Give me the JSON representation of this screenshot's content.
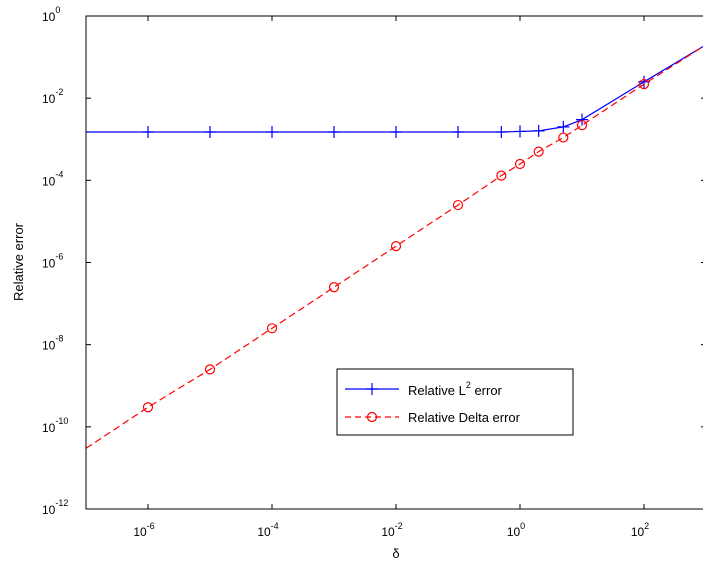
{
  "chart_data": {
    "type": "line",
    "xlabel": "δ",
    "ylabel": "Relative error",
    "x_scale": "log",
    "y_scale": "log",
    "xlim": [
      1e-07,
      1000
    ],
    "ylim": [
      1e-12,
      1
    ],
    "x_ticks": [
      {
        "base": "10",
        "exp": "-6",
        "value": 1e-06
      },
      {
        "base": "10",
        "exp": "-4",
        "value": 0.0001
      },
      {
        "base": "10",
        "exp": "-2",
        "value": 0.01
      },
      {
        "base": "10",
        "exp": "0",
        "value": 1
      },
      {
        "base": "10",
        "exp": "2",
        "value": 100
      }
    ],
    "y_ticks": [
      {
        "base": "10",
        "exp": "0",
        "value": 1
      },
      {
        "base": "10",
        "exp": "-2",
        "value": 0.01
      },
      {
        "base": "10",
        "exp": "-4",
        "value": 0.0001
      },
      {
        "base": "10",
        "exp": "-6",
        "value": 1e-06
      },
      {
        "base": "10",
        "exp": "-8",
        "value": 1e-08
      },
      {
        "base": "10",
        "exp": "-10",
        "value": 1e-10
      },
      {
        "base": "10",
        "exp": "-12",
        "value": 1e-12
      }
    ],
    "grid": false,
    "legend_position": "lower-right",
    "series": [
      {
        "name_prefix": "Relative L",
        "name_sup": "2",
        "name_suffix": " error",
        "color": "#0000ff",
        "line_style": "solid",
        "marker": "plus",
        "x": [
          1e-07,
          1e-06,
          1e-05,
          0.0001,
          0.001,
          0.01,
          0.1,
          0.5,
          1,
          2,
          5,
          10,
          100,
          1000
        ],
        "y": [
          0.0015,
          0.0015,
          0.0015,
          0.0015,
          0.0015,
          0.0015,
          0.0015,
          0.0015,
          0.00155,
          0.0016,
          0.002,
          0.003,
          0.025,
          0.2
        ],
        "marker_x": [
          1e-06,
          1e-05,
          0.0001,
          0.001,
          0.01,
          0.1,
          0.5,
          1,
          2,
          5,
          10,
          100
        ]
      },
      {
        "name": "Relative Delta error",
        "color": "#ff0000",
        "line_style": "dashed",
        "marker": "circle",
        "x": [
          1e-07,
          1e-06,
          1e-05,
          0.0001,
          0.001,
          0.01,
          0.1,
          0.5,
          1,
          2,
          5,
          10,
          100,
          1000
        ],
        "y": [
          3e-11,
          3e-10,
          2.5e-09,
          2.5e-08,
          2.5e-07,
          2.5e-06,
          2.5e-05,
          0.00013,
          0.00025,
          0.0005,
          0.0011,
          0.0022,
          0.022,
          0.2
        ],
        "marker_x": [
          1e-06,
          1e-05,
          0.0001,
          0.001,
          0.01,
          0.1,
          0.5,
          1,
          2,
          5,
          10,
          100
        ]
      }
    ]
  }
}
